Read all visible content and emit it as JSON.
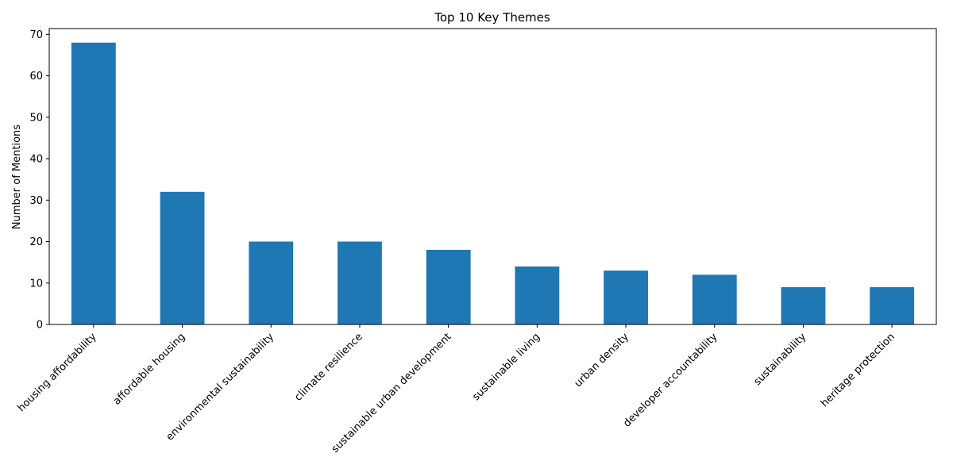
{
  "chart_data": {
    "type": "bar",
    "title": "Top 10 Key Themes",
    "xlabel": "",
    "ylabel": "Number of Mentions",
    "categories": [
      "housing affordability",
      "affordable housing",
      "environmental sustainability",
      "climate resilience",
      "sustainable urban development",
      "sustainable living",
      "urban density",
      "developer accountability",
      "sustainability",
      "heritage protection"
    ],
    "values": [
      68,
      32,
      20,
      20,
      18,
      14,
      13,
      12,
      9,
      9
    ],
    "ylim": [
      0,
      71.4
    ],
    "yticks": [
      0,
      10,
      20,
      30,
      40,
      50,
      60,
      70
    ],
    "grid": false,
    "legend": "none",
    "bar_color": "#1f77b4",
    "x_tick_rotation_deg": 45
  }
}
